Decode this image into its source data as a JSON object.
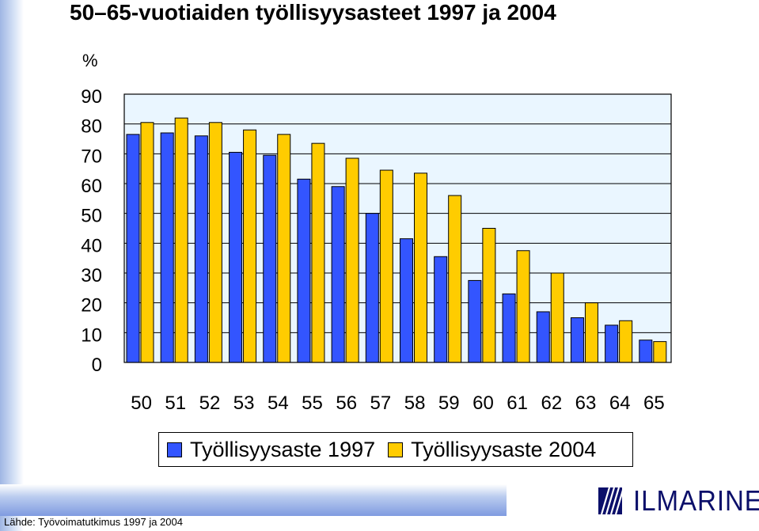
{
  "title": "50–65-vuotiaiden työllisyysasteet 1997 ja 2004",
  "source": "Lähde: Työvoimatutkimus 1997 ja 2004",
  "logo_text": "ILMARINEN",
  "colors": {
    "series_1997": "#3355ff",
    "series_2004": "#ffcc00",
    "plot_bg": "#eaf6ff",
    "border": "#000000"
  },
  "chart_data": {
    "type": "bar",
    "title": "50–65-vuotiaiden työllisyysasteet 1997 ja 2004",
    "xlabel": "",
    "ylabel": "%",
    "ylim": [
      0,
      90
    ],
    "yticks": [
      0,
      10,
      20,
      30,
      40,
      50,
      60,
      70,
      80,
      90
    ],
    "grid": true,
    "legend_position": "bottom",
    "categories": [
      "50",
      "51",
      "52",
      "53",
      "54",
      "55",
      "56",
      "57",
      "58",
      "59",
      "60",
      "61",
      "62",
      "63",
      "64",
      "65"
    ],
    "series": [
      {
        "name": "Työllisyysaste 1997",
        "color": "#3355ff",
        "values": [
          76.5,
          77,
          76,
          70.5,
          69.5,
          61.5,
          59,
          50,
          41.5,
          35.5,
          27.5,
          23,
          17,
          15,
          12.5,
          7.5
        ]
      },
      {
        "name": "Työllisyysaste 2004",
        "color": "#ffcc00",
        "values": [
          80.5,
          82,
          80.5,
          78,
          76.5,
          73.5,
          68.5,
          64.5,
          63.5,
          56,
          45,
          37.5,
          30,
          20,
          14,
          7
        ]
      }
    ]
  }
}
